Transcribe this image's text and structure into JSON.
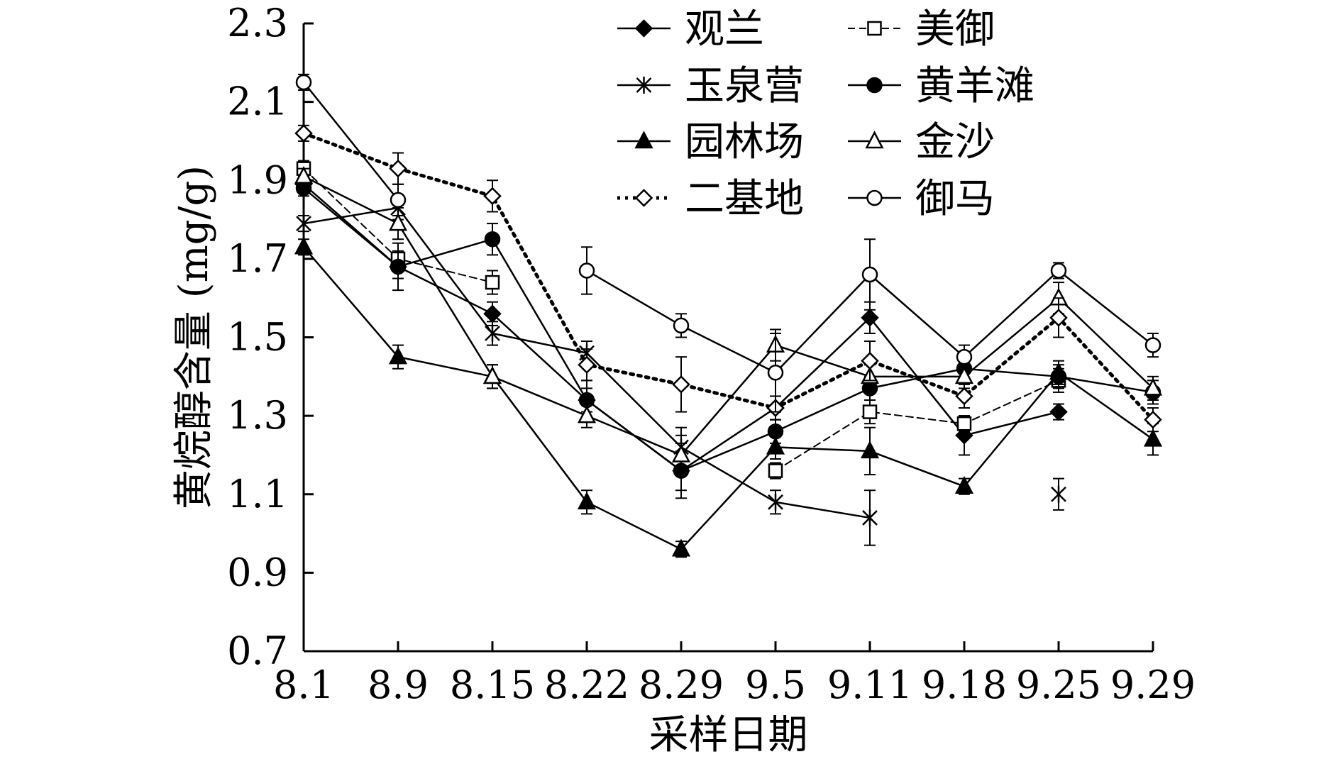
{
  "chart_data": {
    "type": "line",
    "title": "",
    "xlabel": "采样日期",
    "ylabel": "黄烷醇含量 (mg/g)",
    "categories": [
      "8.1",
      "8.9",
      "8.15",
      "8.22",
      "8.29",
      "9.5",
      "9.11",
      "9.18",
      "9.25",
      "9.29"
    ],
    "ylim": [
      0.7,
      2.3
    ],
    "yticks": [
      "0.7",
      "0.9",
      "1.1",
      "1.3",
      "1.5",
      "1.7",
      "1.9",
      "2.1",
      "2.3"
    ],
    "grid": false,
    "legend_position": "top-right",
    "series": [
      {
        "name": "观兰",
        "marker": "diamond-filled",
        "dash": "solid",
        "values": [
          1.89,
          1.68,
          1.56,
          1.34,
          1.16,
          1.32,
          1.55,
          1.25,
          1.31,
          null
        ],
        "errors": [
          0.02,
          0.03,
          0.03,
          0.03,
          0.05,
          0.03,
          0.04,
          0.05,
          0.02,
          null
        ]
      },
      {
        "name": "美御",
        "marker": "square-open",
        "dash": "dashed",
        "values": [
          1.93,
          1.7,
          1.64,
          null,
          null,
          1.16,
          1.31,
          1.28,
          1.39,
          null
        ],
        "errors": [
          0.02,
          0.02,
          0.03,
          null,
          null,
          0.02,
          0.03,
          0.02,
          0.03,
          null
        ]
      },
      {
        "name": "玉泉营",
        "marker": "asterisk",
        "dash": "solid",
        "values": [
          1.79,
          1.83,
          1.51,
          1.46,
          1.22,
          1.08,
          1.04,
          null,
          1.1,
          null
        ],
        "errors": [
          0.02,
          0.03,
          0.03,
          0.03,
          0.05,
          0.03,
          0.07,
          null,
          0.04,
          null
        ]
      },
      {
        "name": "黄羊滩",
        "marker": "circle-filled",
        "dash": "solid",
        "values": [
          1.88,
          1.68,
          1.75,
          1.34,
          1.16,
          1.26,
          1.37,
          1.42,
          1.4,
          1.36
        ],
        "errors": [
          0.02,
          0.06,
          0.04,
          0.05,
          0.07,
          0.03,
          0.03,
          0.03,
          0.03,
          0.03
        ]
      },
      {
        "name": "园林场",
        "marker": "triangle-filled",
        "dash": "solid",
        "values": [
          1.73,
          1.45,
          1.4,
          1.08,
          0.96,
          1.22,
          1.21,
          1.12,
          1.41,
          1.24
        ],
        "errors": [
          0.02,
          0.03,
          0.03,
          0.03,
          0.02,
          0.03,
          0.06,
          0.02,
          0.03,
          0.04
        ]
      },
      {
        "name": "金沙",
        "marker": "triangle-open",
        "dash": "solid",
        "values": [
          1.91,
          1.79,
          1.4,
          1.3,
          1.2,
          1.48,
          1.4,
          1.4,
          1.6,
          1.37
        ],
        "errors": [
          0.02,
          0.04,
          0.03,
          0.03,
          0.05,
          0.04,
          0.03,
          0.03,
          0.04,
          0.03
        ]
      },
      {
        "name": "二基地",
        "marker": "diamond-open",
        "dash": "dotted",
        "values": [
          2.02,
          1.93,
          1.86,
          1.43,
          1.38,
          1.32,
          1.44,
          1.35,
          1.55,
          1.29
        ],
        "errors": [
          0.02,
          0.04,
          0.04,
          0.04,
          0.07,
          0.03,
          0.05,
          0.03,
          0.05,
          0.03
        ]
      },
      {
        "name": "御马",
        "marker": "circle-open",
        "dash": "solid",
        "values": [
          2.15,
          1.85,
          null,
          1.67,
          1.53,
          1.41,
          1.66,
          1.45,
          1.67,
          1.48
        ],
        "errors": [
          0.02,
          0.04,
          null,
          0.06,
          0.03,
          0.1,
          0.09,
          0.03,
          0.02,
          0.03
        ]
      }
    ]
  }
}
